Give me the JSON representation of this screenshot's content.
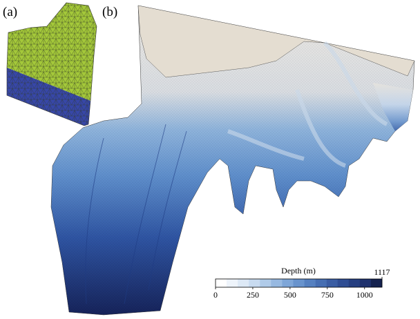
{
  "panels": [
    {
      "label": "(a)"
    },
    {
      "label": "(b)"
    }
  ],
  "colorbar": {
    "title": "Depth (m)",
    "range": [
      0,
      1117
    ],
    "ticks": [
      0,
      250,
      500,
      750,
      1000
    ],
    "colors": [
      "#ffffff",
      "#eef4fb",
      "#dde9f6",
      "#c8dbf0",
      "#b0cbe9",
      "#97b9e1",
      "#7ea6d8",
      "#6893cd",
      "#5580c0",
      "#466eb2",
      "#3a5da3",
      "#2f4d93",
      "#263f81",
      "#1e316d",
      "#15224f"
    ]
  }
}
